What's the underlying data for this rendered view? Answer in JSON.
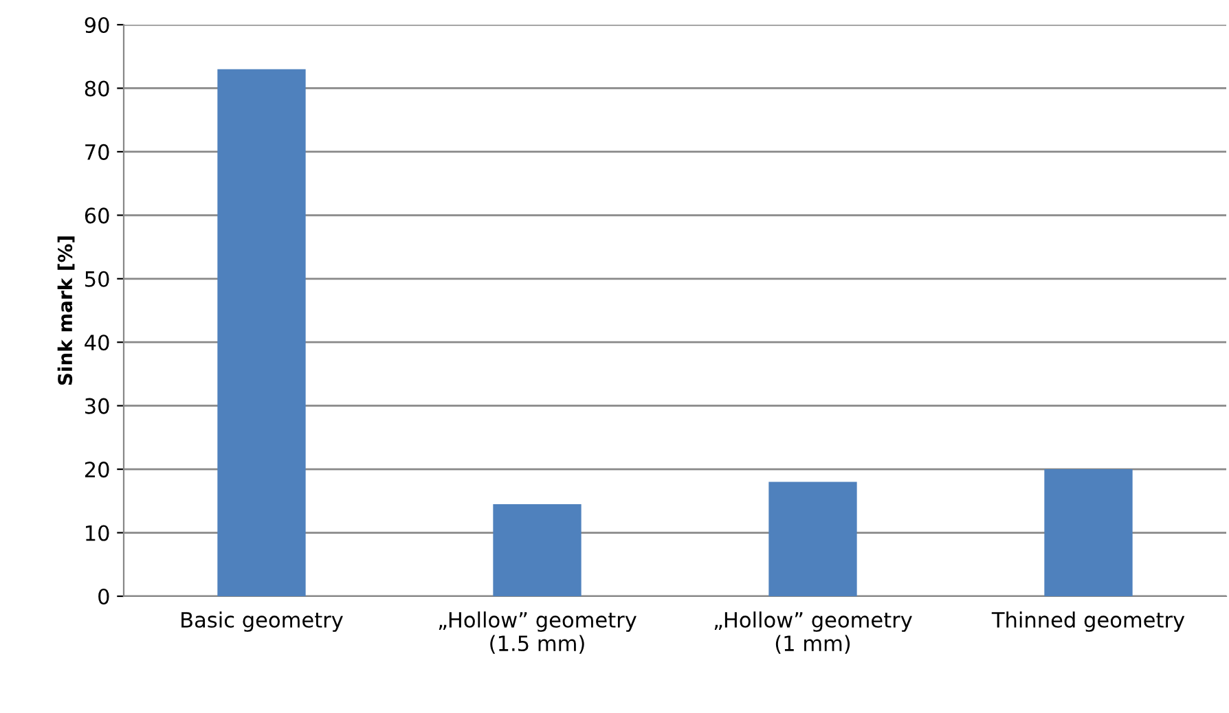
{
  "chart_data": {
    "type": "bar",
    "ylabel": "Sink mark [%]",
    "categories": [
      "Basic geometry",
      "„Hollow” geometry\n(1.5 mm)",
      "„Hollow” geometry\n(1 mm)",
      "Thinned geometry"
    ],
    "values": [
      83,
      14.5,
      18,
      20
    ],
    "color": "#4f81bd",
    "ylim": [
      0,
      90
    ],
    "yticks": [
      0,
      10,
      20,
      30,
      40,
      50,
      60,
      70,
      80,
      90
    ],
    "grid": "y",
    "legend": false
  }
}
